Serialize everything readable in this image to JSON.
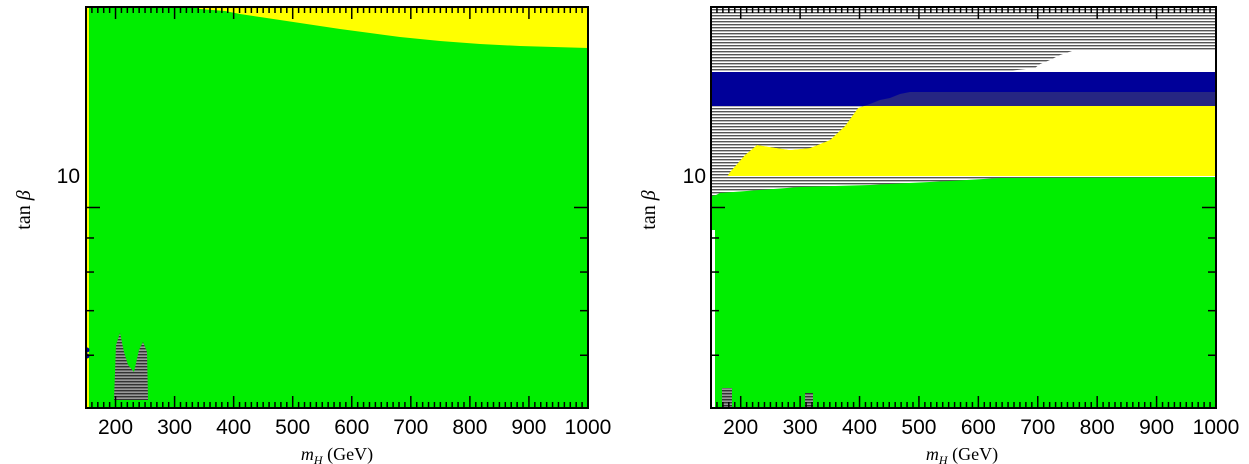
{
  "chart_data": [
    {
      "type": "heatmap",
      "title": "",
      "xlabel": "m_H (GeV)",
      "ylabel": "tan β",
      "xlim": [
        150,
        1000
      ],
      "ylim": [
        5,
        20
      ],
      "ylog": true,
      "x_ticks": [
        200,
        300,
        400,
        500,
        600,
        700,
        800,
        900,
        1000
      ],
      "x_tick_labels": [
        "200",
        "300",
        "400",
        "500",
        "600",
        "700",
        "800",
        "900",
        "1000"
      ],
      "y_tick_labels": [
        {
          "value": 10,
          "label": "10"
        }
      ],
      "colors": {
        "green": "#00ee00",
        "yellow": "#ffff00",
        "hatch": "#555555",
        "navy": "#000099"
      },
      "regions": [
        {
          "color": "yellow",
          "x": [
            150,
            1000
          ],
          "y_from": 17.8,
          "y_to": 20
        },
        {
          "color": "green",
          "boundary_x": [
            150,
            200,
            250,
            300,
            340,
            360,
            400,
            450,
            500,
            550,
            600,
            650,
            700,
            750,
            800,
            850,
            900,
            1000
          ],
          "boundary_y": [
            20,
            20,
            20,
            20,
            20,
            19.8,
            19.4,
            19.0,
            18.7,
            18.5,
            18.3,
            18.2,
            18.1,
            18.0,
            17.95,
            17.9,
            17.85,
            17.8
          ]
        },
        {
          "color": "hatch",
          "x_from": 205,
          "x_to": 255,
          "y_to": 6.1
        }
      ]
    },
    {
      "type": "heatmap",
      "title": "",
      "xlabel": "m_H (GeV)",
      "ylabel": "tan β",
      "xlim": [
        150,
        1000
      ],
      "ylim": [
        5,
        20
      ],
      "ylog": true,
      "x_ticks": [
        200,
        300,
        400,
        500,
        600,
        700,
        800,
        900,
        1000
      ],
      "x_tick_labels": [
        "200",
        "300",
        "400",
        "500",
        "600",
        "700",
        "800",
        "900",
        "1000"
      ],
      "y_tick_labels": [
        {
          "value": 10,
          "label": "10"
        }
      ],
      "colors": {
        "green": "#00ee00",
        "yellow": "#ffff00",
        "hatch": "#555555",
        "navy": "#000099"
      },
      "regions": [
        {
          "color": "green",
          "boundary_x": [
            150,
            160,
            200,
            300,
            400,
            500,
            560,
            600,
            700,
            800,
            900,
            1000
          ],
          "boundary_y": [
            9.2,
            9.45,
            9.5,
            9.55,
            9.6,
            9.65,
            9.75,
            9.75,
            9.8,
            9.8,
            9.8,
            9.8
          ]
        },
        {
          "color": "yellow",
          "y_to": 13.3
        },
        {
          "color": "navy",
          "y_from": 13.3,
          "y_to": 15.0
        },
        {
          "color": "hatch",
          "y_from": 15.0,
          "y_to": 20
        },
        {
          "color": "hatch_left_edge",
          "boundary_x": [
            150,
            170,
            200,
            230,
            260,
            300,
            330,
            360,
            380,
            400,
            420,
            460,
            470,
            500
          ],
          "boundary_y": [
            9.7,
            9.9,
            10.3,
            11.5,
            12.0,
            11.5,
            11.7,
            12.2,
            12.5,
            13.3,
            13.3,
            13.3,
            13.7,
            14.0
          ]
        }
      ]
    }
  ]
}
